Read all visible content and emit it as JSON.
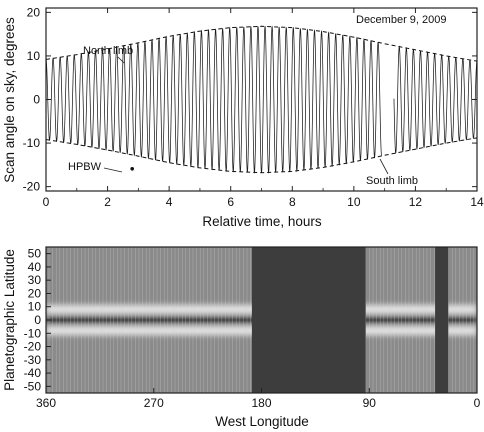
{
  "chart_data": [
    {
      "type": "line",
      "title": "December 9, 2009",
      "xlabel": "Relative time, hours",
      "ylabel": "Scan angle on sky, degrees",
      "xlim": [
        0,
        14
      ],
      "ylim": [
        -21,
        21
      ],
      "xticks": [
        "0",
        "2",
        "4",
        "6",
        "8",
        "10",
        "12",
        "14"
      ],
      "yticks": [
        "20",
        "10",
        "0",
        "-10",
        "-20"
      ],
      "grid": false,
      "annotations": [
        "North limb",
        "South limb",
        "HPBW"
      ],
      "series": [
        {
          "name": "North limb",
          "style": "dashed",
          "x": [
            0,
            1,
            2,
            3,
            4,
            5,
            6,
            7,
            8,
            9,
            10,
            11,
            12,
            13,
            14
          ],
          "values": [
            9.2,
            10.3,
            11.6,
            13,
            14.5,
            15.7,
            16.5,
            16.8,
            16.5,
            15.6,
            14.3,
            12.8,
            11.4,
            10,
            8.8
          ]
        },
        {
          "name": "South limb",
          "style": "dashed",
          "x": [
            0,
            1,
            2,
            3,
            4,
            5,
            6,
            7,
            8,
            9,
            10,
            11,
            12,
            13,
            14
          ],
          "values": [
            -9.2,
            -10.3,
            -11.6,
            -13,
            -14.5,
            -15.7,
            -16.5,
            -16.8,
            -16.5,
            -15.6,
            -14.3,
            -12.8,
            -11.4,
            -10,
            -8.8
          ]
        },
        {
          "name": "scan trace",
          "style": "solid",
          "cycles": 61,
          "gaps": [
            [
              10.9,
              11.3
            ]
          ],
          "amplitude_note": "oscillates between the north and south limb envelopes"
        }
      ],
      "beam_marker": {
        "x": 2.8,
        "y": -15.9
      }
    },
    {
      "type": "heatmap",
      "xlabel": "West Longitude",
      "ylabel": "Planetographic Latitude",
      "xlim": [
        360,
        0
      ],
      "ylim": [
        -55,
        55
      ],
      "xticks": [
        "360",
        "270",
        "180",
        "90",
        "0"
      ],
      "yticks": [
        "50",
        "40",
        "30",
        "20",
        "10",
        "0",
        "-10",
        "-20",
        "-30",
        "-40",
        "-50"
      ],
      "no_data_longitude_ranges": [
        [
          188,
          93
        ],
        [
          35,
          24
        ]
      ],
      "bands": [
        {
          "latitude": 8,
          "brightness": "bright"
        },
        {
          "latitude": 0,
          "brightness": "dark"
        },
        {
          "latitude": -8,
          "brightness": "bright"
        }
      ]
    }
  ]
}
